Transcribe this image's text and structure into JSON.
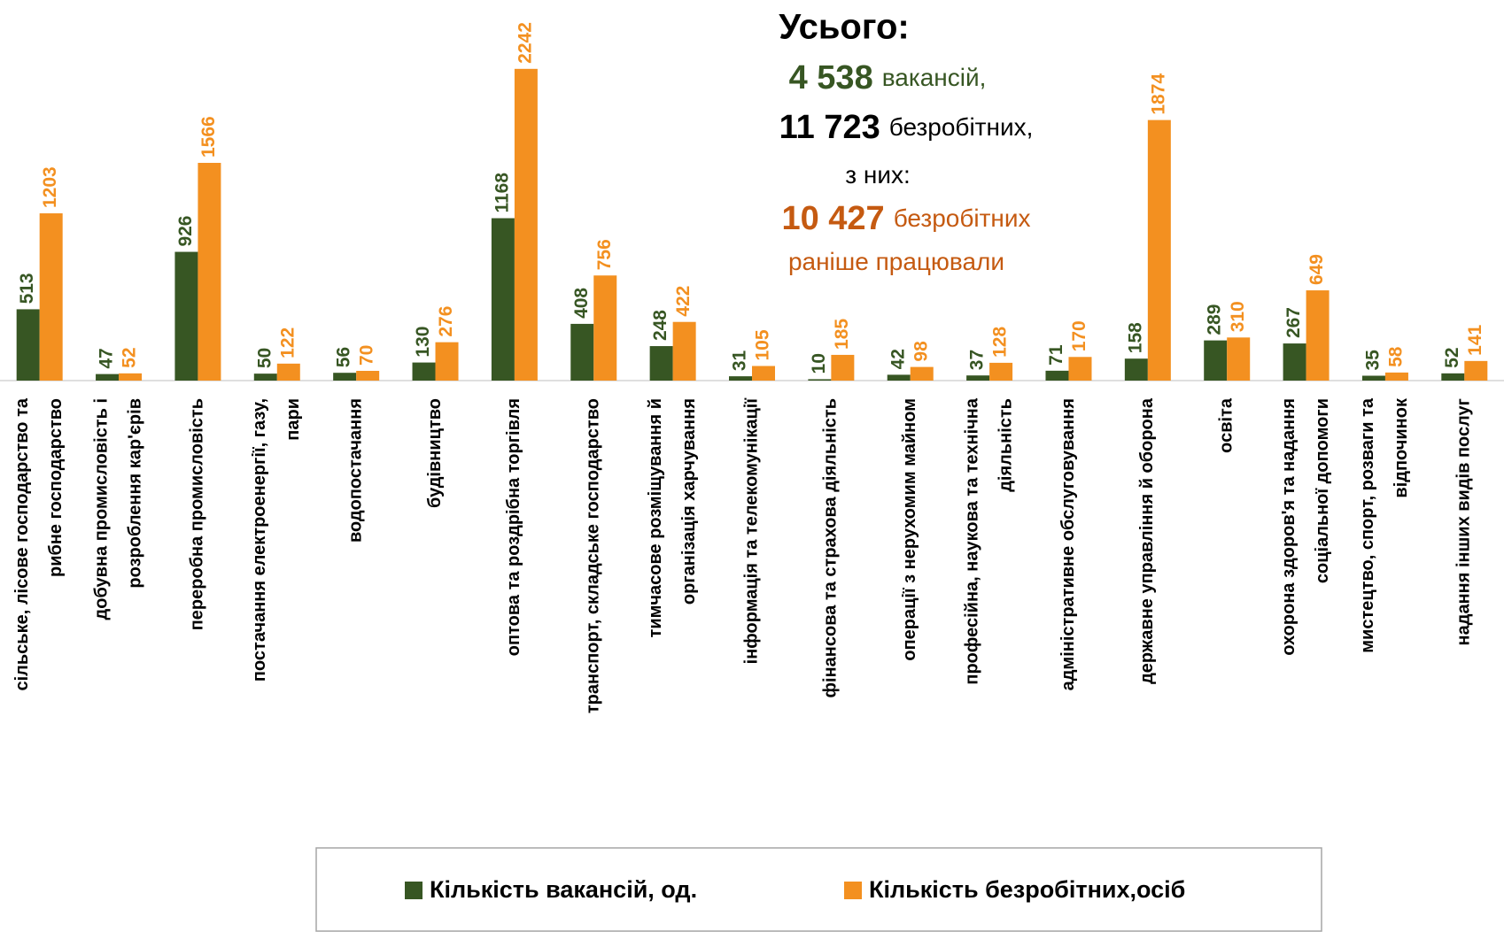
{
  "chart_data": {
    "type": "bar",
    "categories": [
      [
        "сільське, лісове господарство та",
        "рибне господарство"
      ],
      [
        "добувна промисловість і",
        "розроблення кар'єрів"
      ],
      [
        "переробна промисловість"
      ],
      [
        "постачання електроенергії, газу,",
        "пари"
      ],
      [
        "водопостачання"
      ],
      [
        "будівництво"
      ],
      [
        "оптова та роздрібна торгівля"
      ],
      [
        "транспорт, складське господарство"
      ],
      [
        "тимчасове розміщування й",
        "організація харчування"
      ],
      [
        "інформація та телекомунікації"
      ],
      [
        "фінансова та страхова діяльність"
      ],
      [
        "операції з нерухомим майном"
      ],
      [
        "професійна, наукова та технічна",
        "діяльність"
      ],
      [
        "адміністративне обслуговування"
      ],
      [
        "державне управління й оборона"
      ],
      [
        "освіта"
      ],
      [
        "охорона здоров'я та надання",
        "соціальної допомоги"
      ],
      [
        "мистецтво, спорт, розваги та",
        "відпочинок"
      ],
      [
        "надання інших видів послуг"
      ]
    ],
    "series": [
      {
        "name": "Кількість вакансій, од.",
        "color": "#375623",
        "values": [
          513,
          47,
          926,
          50,
          56,
          130,
          1168,
          408,
          248,
          31,
          10,
          42,
          37,
          71,
          158,
          289,
          267,
          35,
          52
        ]
      },
      {
        "name": "Кількість безробітних,осіб",
        "color": "#f39020",
        "values": [
          1203,
          52,
          1566,
          122,
          70,
          276,
          2242,
          756,
          422,
          105,
          185,
          98,
          128,
          170,
          1874,
          310,
          649,
          58,
          141
        ]
      }
    ],
    "ylim": [
      0,
      2400
    ],
    "title": "Усього:",
    "annotations": [
      {
        "parts": [
          "4 538",
          "вакансій,"
        ],
        "color": "#375623"
      },
      {
        "parts": [
          "11 723",
          "безробітних,"
        ],
        "color": "#000000"
      },
      {
        "parts": [
          "з них:"
        ],
        "color": "#000000"
      },
      {
        "parts": [
          "10 427",
          "безробітних"
        ],
        "color": "#c55a11"
      },
      {
        "parts": [
          "раніше працювали"
        ],
        "color": "#c55a11"
      }
    ],
    "legend": "bottom"
  }
}
